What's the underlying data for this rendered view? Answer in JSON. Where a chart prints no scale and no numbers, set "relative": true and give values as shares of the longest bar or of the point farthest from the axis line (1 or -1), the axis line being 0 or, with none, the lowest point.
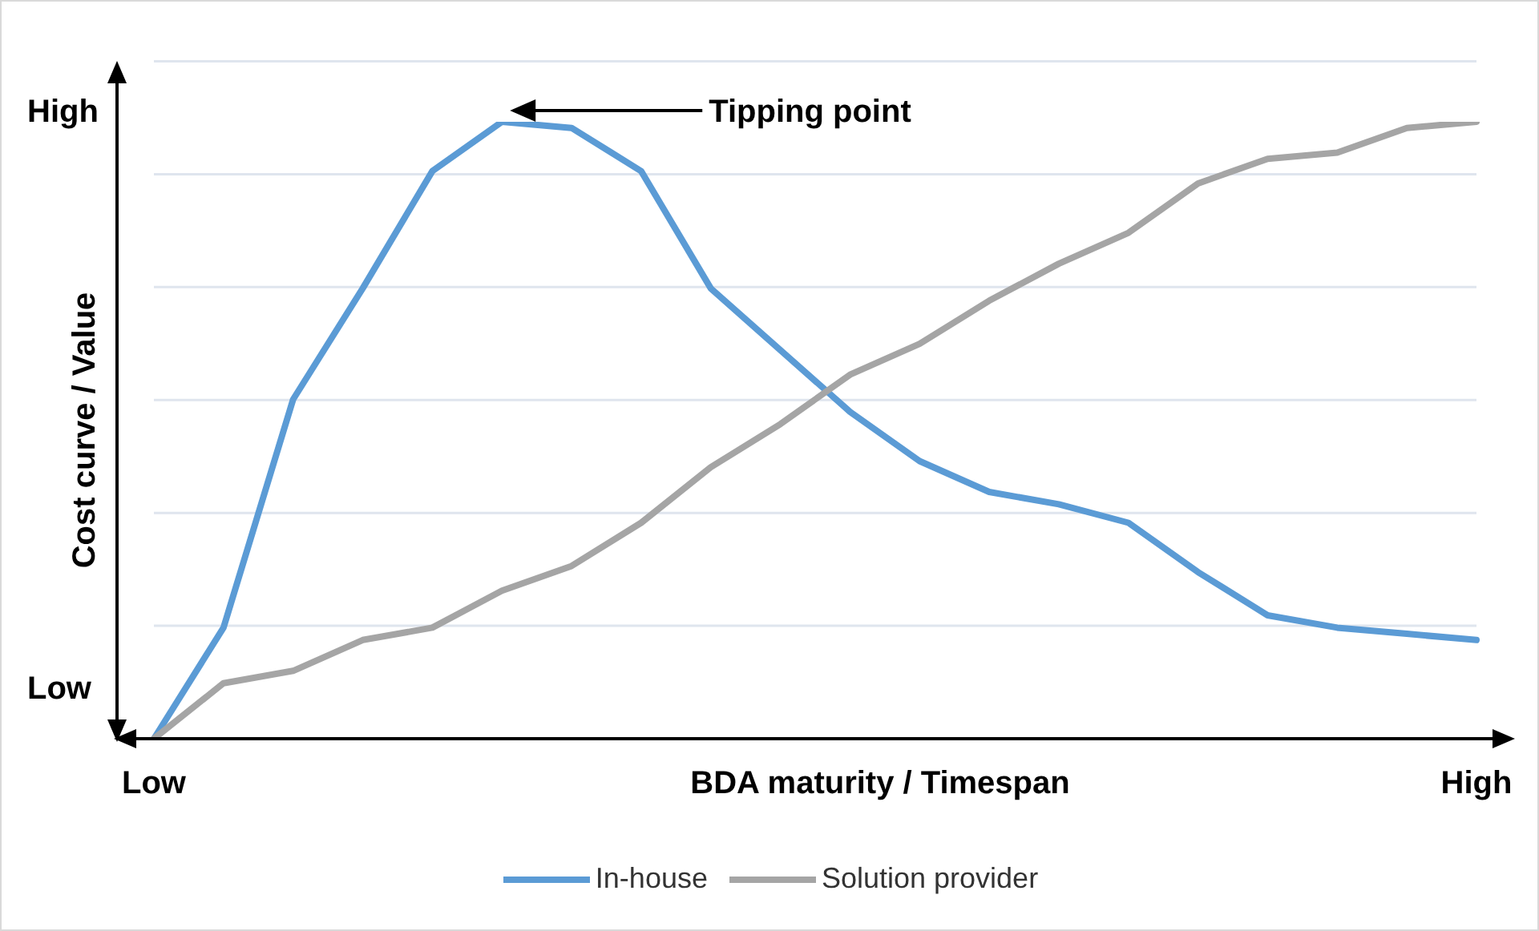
{
  "chart_data": {
    "type": "line",
    "relative": true,
    "xlabel": "BDA maturity / Timespan",
    "ylabel": "Cost curve / Value",
    "categories": [
      "Low",
      null,
      null,
      null,
      null,
      null,
      null,
      null,
      null,
      null,
      null,
      null,
      null,
      null,
      null,
      null,
      null,
      null,
      null,
      "High"
    ],
    "series": [
      {
        "name": "In-house",
        "color": "#5b9bd5",
        "values": [
          0,
          0.18,
          0.55,
          0.73,
          0.92,
          1,
          0.99,
          0.92,
          0.73,
          0.63,
          0.53,
          0.45,
          0.4,
          0.38,
          0.35,
          0.27,
          0.2,
          0.18,
          0.17,
          0.16
        ]
      },
      {
        "name": "Solution provider",
        "color": "#a5a5a5",
        "values": [
          0,
          0.09,
          0.11,
          0.16,
          0.18,
          0.24,
          0.28,
          0.35,
          0.44,
          0.51,
          0.59,
          0.64,
          0.71,
          0.77,
          0.82,
          0.9,
          0.94,
          0.95,
          0.99,
          1
        ]
      }
    ],
    "annotations": [
      "Tipping point",
      "High",
      "Low"
    ],
    "grid": "y",
    "legend": "bottom",
    "marker": "none",
    "line_style": "solid"
  }
}
